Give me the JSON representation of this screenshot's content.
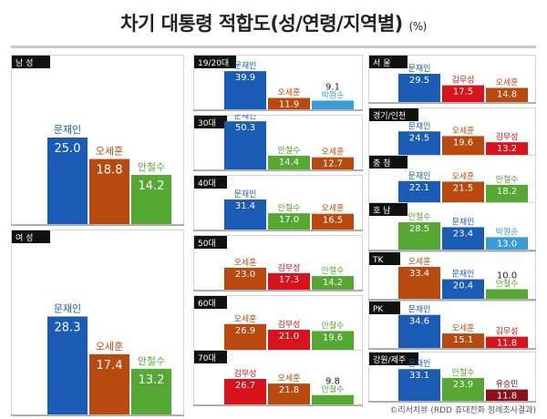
{
  "title": "차기 대통령 적합도(성/연령/지역별)",
  "title_unit": "(%)",
  "source": "©리서치뷰 (RDD 휴대전화 정례조사결과)",
  "colors": {
    "문재인": "#1a5bb5",
    "오세훈": "#b84a0f",
    "안철수": "#55a832",
    "박원순": "#3a9bd9",
    "김무성": "#d8131b",
    "유승민": "#8a1019"
  },
  "chart_data": [
    {
      "type": "bar",
      "group": "gender",
      "title": "남 성",
      "categories": [
        "문재인",
        "오세훈",
        "안철수"
      ],
      "values": [
        25.0,
        18.8,
        14.2
      ],
      "labels": [
        "25.0",
        "18.8",
        "14.2"
      ]
    },
    {
      "type": "bar",
      "group": "gender",
      "title": "여 성",
      "categories": [
        "문재인",
        "오세훈",
        "안철수"
      ],
      "values": [
        28.3,
        17.4,
        13.2
      ],
      "labels": [
        "28.3",
        "17.4",
        "13.2"
      ]
    },
    {
      "type": "bar",
      "group": "age",
      "title": "19/20대",
      "categories": [
        "문재인",
        "오세훈",
        "박원순"
      ],
      "values": [
        39.9,
        11.9,
        9.1
      ],
      "labels": [
        "39.9",
        "11.9",
        "9.1"
      ]
    },
    {
      "type": "bar",
      "group": "age",
      "title": "30대",
      "categories": [
        "문재인",
        "안철수",
        "오세훈"
      ],
      "values": [
        50.3,
        14.4,
        12.7
      ],
      "labels": [
        "50.3",
        "14.4",
        "12.7"
      ]
    },
    {
      "type": "bar",
      "group": "age",
      "title": "40대",
      "categories": [
        "문재인",
        "안철수",
        "오세훈"
      ],
      "values": [
        31.4,
        17.0,
        16.5
      ],
      "labels": [
        "31.4",
        "17.0",
        "16.5"
      ]
    },
    {
      "type": "bar",
      "group": "age",
      "title": "50대",
      "categories": [
        "오세훈",
        "김무성",
        "안철수"
      ],
      "values": [
        23.0,
        17.3,
        14.2
      ],
      "labels": [
        "23.0",
        "17.3",
        "14.2"
      ]
    },
    {
      "type": "bar",
      "group": "age",
      "title": "60대",
      "categories": [
        "오세훈",
        "김무성",
        "안철수"
      ],
      "values": [
        26.9,
        21.0,
        19.6
      ],
      "labels": [
        "26.9",
        "21.0",
        "19.6"
      ]
    },
    {
      "type": "bar",
      "group": "age",
      "title": "70대",
      "categories": [
        "김무성",
        "오세훈",
        "안철수"
      ],
      "values": [
        26.7,
        21.8,
        9.8
      ],
      "labels": [
        "26.7",
        "21.8",
        "9.8"
      ]
    },
    {
      "type": "bar",
      "group": "region",
      "title": "서 울",
      "categories": [
        "문재인",
        "김무성",
        "오세훈"
      ],
      "values": [
        29.5,
        17.5,
        14.8
      ],
      "labels": [
        "29.5",
        "17.5",
        "14.8"
      ]
    },
    {
      "type": "bar",
      "group": "region",
      "title": "경기/인천",
      "categories": [
        "문재인",
        "오세훈",
        "김무성"
      ],
      "values": [
        24.5,
        19.6,
        13.2
      ],
      "labels": [
        "24.5",
        "19.6",
        "13.2"
      ]
    },
    {
      "type": "bar",
      "group": "region",
      "title": "충 청",
      "categories": [
        "문재인",
        "오세훈",
        "안철수"
      ],
      "values": [
        22.1,
        21.5,
        18.2
      ],
      "labels": [
        "22.1",
        "21.5",
        "18.2"
      ]
    },
    {
      "type": "bar",
      "group": "region",
      "title": "호 남",
      "categories": [
        "안철수",
        "문재인",
        "박원순"
      ],
      "values": [
        28.5,
        23.4,
        13.0
      ],
      "labels": [
        "28.5",
        "23.4",
        "13.0"
      ]
    },
    {
      "type": "bar",
      "group": "region",
      "title": "TK",
      "categories": [
        "오세훈",
        "문재인",
        "안철수"
      ],
      "values": [
        33.4,
        20.4,
        10.0
      ],
      "labels": [
        "33.4",
        "20.4",
        "10.0"
      ]
    },
    {
      "type": "bar",
      "group": "region",
      "title": "PK",
      "categories": [
        "문재인",
        "오세훈",
        "김무성"
      ],
      "values": [
        34.6,
        15.1,
        11.8
      ],
      "labels": [
        "34.6",
        "15.1",
        "11.8"
      ]
    },
    {
      "type": "bar",
      "group": "region",
      "title": "강원/제주",
      "categories": [
        "문재인",
        "안철수",
        "유승민"
      ],
      "values": [
        33.1,
        23.9,
        11.8
      ],
      "labels": [
        "33.1",
        "23.9",
        "11.8"
      ]
    }
  ]
}
